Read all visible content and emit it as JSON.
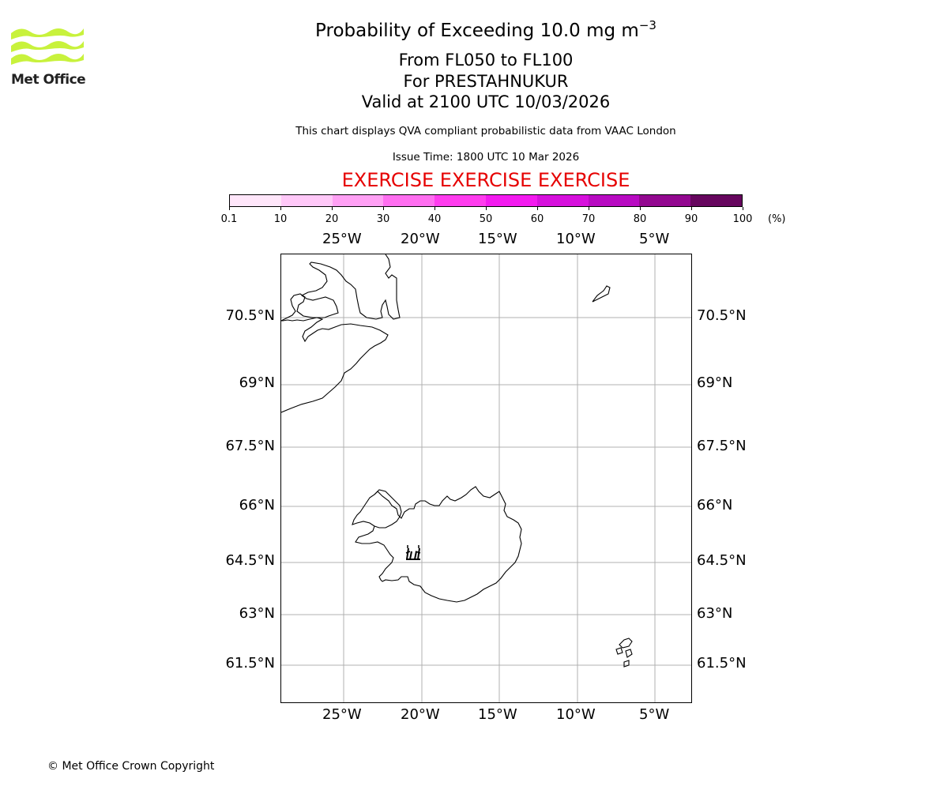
{
  "title": {
    "line1_prefix": "Probability of Exceeding 10.0 mg m",
    "line1_exp": "−3",
    "line2": "From FL050 to FL100",
    "line3": "For PRESTAHNUKUR",
    "line4": "Valid at 2100 UTC 10/03/2026"
  },
  "subtitle": "This chart displays QVA compliant probabilistic data from VAAC London",
  "issue_time": "Issue Time: 1800 UTC 10 Mar 2026",
  "exercise_banner": "EXERCISE EXERCISE EXERCISE",
  "logo": {
    "text": "Met Office",
    "color": "#c8f23c"
  },
  "colorbar": {
    "ticks": [
      "0.1",
      "10",
      "20",
      "30",
      "40",
      "50",
      "60",
      "70",
      "80",
      "90",
      "100"
    ],
    "unit": "(%)",
    "colors": [
      "#ffe6fa",
      "#ffc8f8",
      "#ffa0f4",
      "#ff6ef0",
      "#ff3cee",
      "#f31aef",
      "#d610dc",
      "#b80ac2",
      "#930890",
      "#66065e"
    ]
  },
  "map": {
    "lon_labels": [
      "25°W",
      "20°W",
      "15°W",
      "10°W",
      "5°W"
    ],
    "lat_labels": [
      "70.5°N",
      "69°N",
      "67.5°N",
      "66°N",
      "64.5°N",
      "63°N",
      "61.5°N"
    ],
    "volcano_marker": "volcano-icon"
  },
  "copyright": "© Met Office Crown Copyright"
}
